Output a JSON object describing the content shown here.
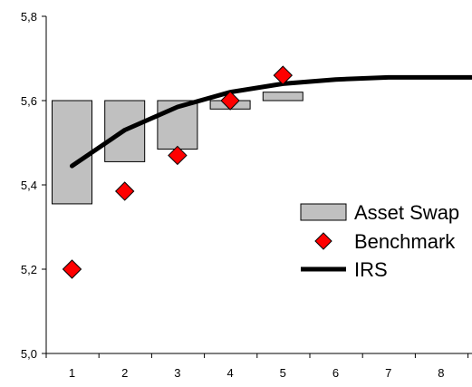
{
  "chart_data": {
    "type": "bar",
    "title": "",
    "xlabel": "",
    "ylabel": "",
    "x": [
      1,
      2,
      3,
      4,
      5,
      6,
      7,
      8
    ],
    "x_tick_labels": [
      "1",
      "2",
      "3",
      "4",
      "5",
      "6",
      "7",
      "8"
    ],
    "ylim": [
      5.0,
      5.8
    ],
    "y_ticks": [
      5.0,
      5.2,
      5.4,
      5.6,
      5.8
    ],
    "y_tick_labels": [
      "5,0",
      "5,2",
      "5,4",
      "5,6",
      "5,8"
    ],
    "legend_position": "right",
    "series": [
      {
        "name": "Asset Swap",
        "kind": "floating-bar",
        "color": "#c0c0c0",
        "data": [
          {
            "x": 1,
            "low": 5.355,
            "high": 5.6
          },
          {
            "x": 2,
            "low": 5.455,
            "high": 5.6
          },
          {
            "x": 3,
            "low": 5.485,
            "high": 5.6
          },
          {
            "x": 4,
            "low": 5.58,
            "high": 5.6
          },
          {
            "x": 5,
            "low": 5.6,
            "high": 5.62
          }
        ]
      },
      {
        "name": "Benchmark",
        "kind": "marker",
        "color": "#ff0000",
        "data": [
          {
            "x": 1,
            "y": 5.2
          },
          {
            "x": 2,
            "y": 5.385
          },
          {
            "x": 3,
            "y": 5.47
          },
          {
            "x": 4,
            "y": 5.6
          },
          {
            "x": 5,
            "y": 5.66
          }
        ]
      },
      {
        "name": "IRS",
        "kind": "line",
        "color": "#000000",
        "data": [
          {
            "x": 1,
            "y": 5.445
          },
          {
            "x": 2,
            "y": 5.53
          },
          {
            "x": 3,
            "y": 5.585
          },
          {
            "x": 4,
            "y": 5.62
          },
          {
            "x": 5,
            "y": 5.64
          },
          {
            "x": 6,
            "y": 5.65
          },
          {
            "x": 7,
            "y": 5.655
          },
          {
            "x": 8,
            "y": 5.655
          },
          {
            "x": 9,
            "y": 5.655
          }
        ]
      }
    ]
  }
}
